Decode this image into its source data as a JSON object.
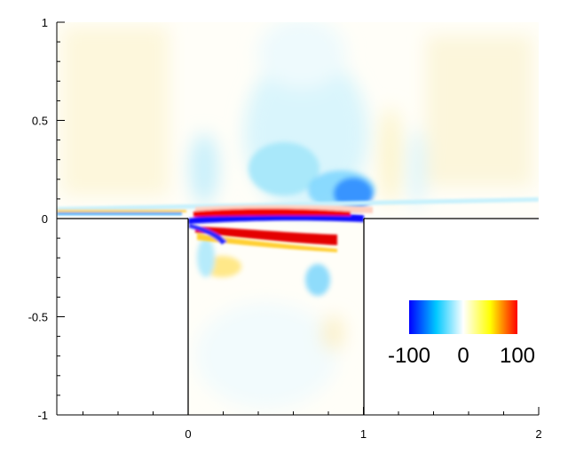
{
  "chart_data": {
    "type": "heatmap",
    "title": "",
    "xlabel": "",
    "ylabel": "",
    "xlim": [
      -0.75,
      2
    ],
    "ylim": [
      -1,
      1
    ],
    "x_ticks": [
      {
        "value": 0,
        "label": "0"
      },
      {
        "value": 1,
        "label": "1"
      },
      {
        "value": 2,
        "label": "2"
      }
    ],
    "y_ticks": [
      {
        "value": 1,
        "label": "1"
      },
      {
        "value": 0.5,
        "label": "0.5"
      },
      {
        "value": 0,
        "label": "0"
      },
      {
        "value": -0.5,
        "label": "-0.5"
      },
      {
        "value": -1,
        "label": "-1"
      }
    ],
    "colorbar": {
      "range": [
        -100,
        100
      ],
      "tick_labels": [
        "-100",
        "0",
        "100"
      ],
      "stops": [
        "#0000ff",
        "#00c8ff",
        "#ffffff",
        "#ffff00",
        "#ff0000"
      ],
      "placement": "lower-right inside cavity region"
    },
    "geometry": {
      "description": "open cavity below a wall at y=0, cavity walls at x=0 and x=1",
      "cavity_x": [
        0,
        1
      ],
      "cavity_y": [
        -1,
        0
      ]
    },
    "field_features": [
      {
        "kind": "shear-layer",
        "sign": "negative",
        "x_range": [
          0.05,
          0.95
        ],
        "y": -0.02,
        "magnitude": 100
      },
      {
        "kind": "shear-layer",
        "sign": "positive",
        "x_range": [
          0.05,
          0.8
        ],
        "y": -0.1,
        "magnitude": 100
      },
      {
        "kind": "shear-layer",
        "sign": "positive",
        "x_range": [
          0.05,
          0.5
        ],
        "y": 0.035,
        "magnitude": 100
      },
      {
        "kind": "blob",
        "sign": "negative",
        "x": 0.9,
        "y": 0.13,
        "magnitude": 100
      },
      {
        "kind": "blob",
        "sign": "negative",
        "x": 0.6,
        "y": 0.35,
        "magnitude": 30
      },
      {
        "kind": "blob",
        "sign": "negative",
        "x": 0.7,
        "y": -0.32,
        "magnitude": 40
      },
      {
        "kind": "boundary-layer",
        "sign": "mixed",
        "x_range": [
          -0.75,
          2
        ],
        "y": 0.05,
        "magnitude": 40
      }
    ]
  }
}
